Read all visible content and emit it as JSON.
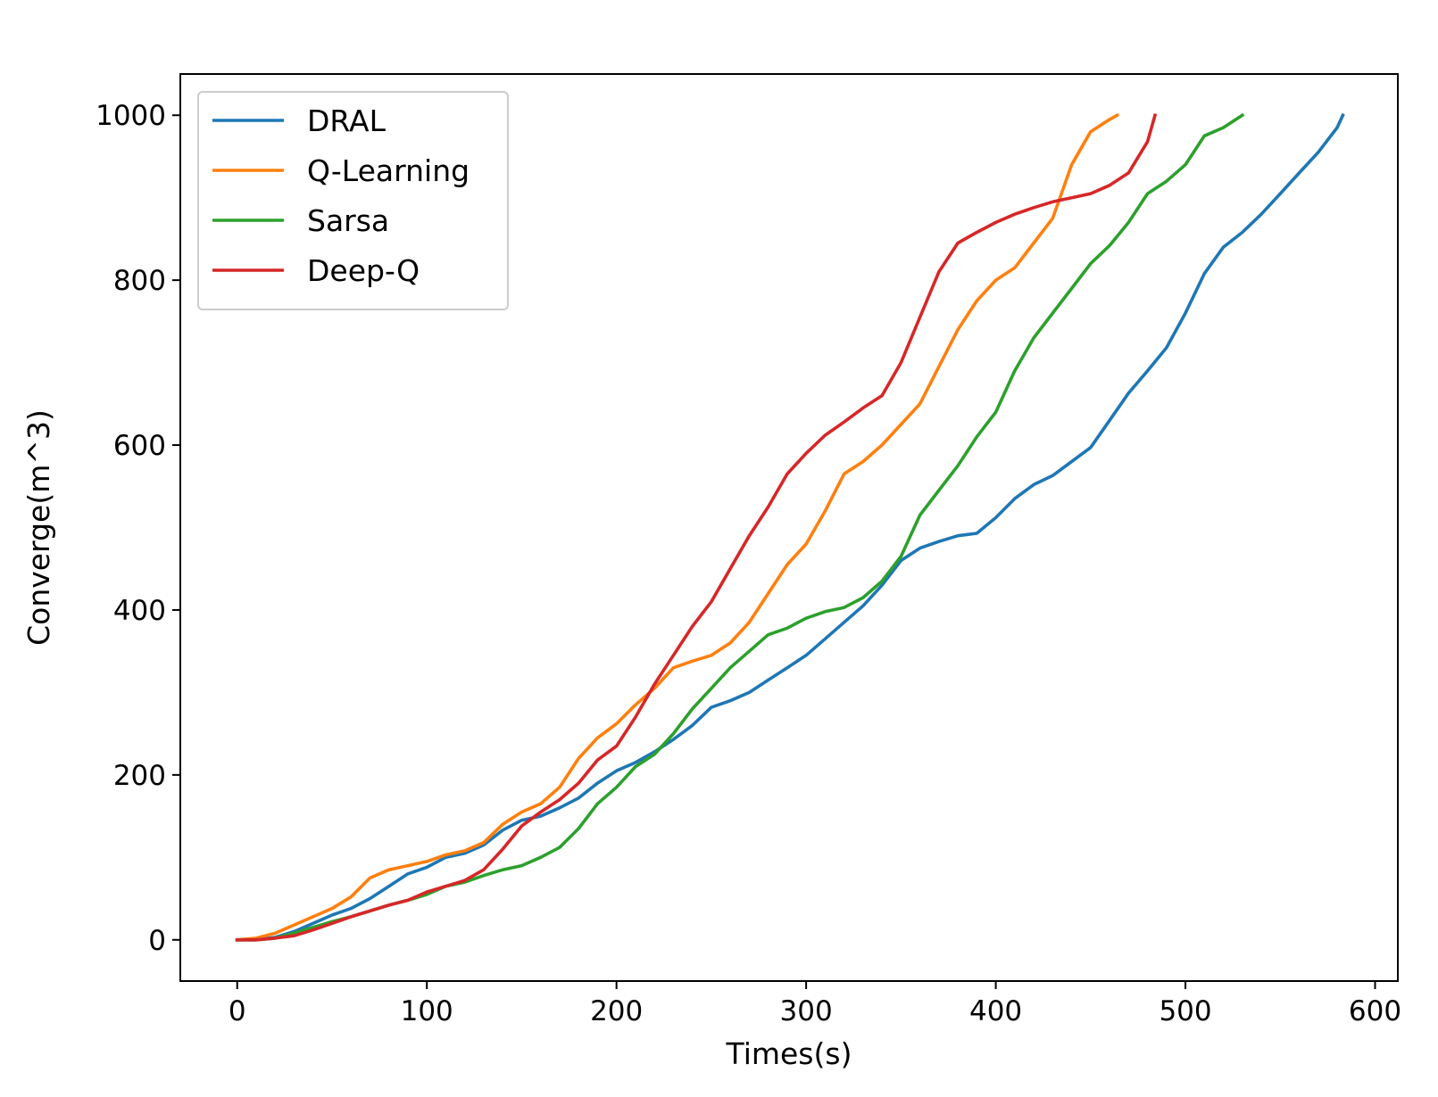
{
  "chart_data": {
    "type": "line",
    "title": "",
    "xlabel": "Times(s)",
    "ylabel": "Converge(m^3)",
    "xlim": [
      -30,
      612
    ],
    "ylim": [
      -50,
      1050
    ],
    "xticks": [
      0,
      100,
      200,
      300,
      400,
      500,
      600
    ],
    "yticks": [
      0,
      200,
      400,
      600,
      800,
      1000
    ],
    "grid": false,
    "legend": "top-left",
    "series": [
      {
        "name": "DRAL",
        "color": "#1f77b4",
        "x": [
          0,
          10,
          20,
          30,
          40,
          50,
          60,
          70,
          80,
          90,
          100,
          110,
          120,
          130,
          140,
          150,
          160,
          170,
          180,
          190,
          200,
          210,
          220,
          230,
          240,
          250,
          260,
          270,
          280,
          290,
          300,
          310,
          320,
          330,
          340,
          350,
          360,
          370,
          380,
          390,
          400,
          410,
          420,
          430,
          440,
          450,
          460,
          470,
          480,
          490,
          500,
          510,
          520,
          530,
          540,
          550,
          560,
          570,
          580,
          583
        ],
        "y": [
          0,
          0,
          3,
          10,
          20,
          30,
          38,
          50,
          65,
          80,
          88,
          100,
          105,
          115,
          133,
          145,
          150,
          160,
          172,
          190,
          205,
          215,
          228,
          243,
          260,
          282,
          290,
          300,
          315,
          330,
          345,
          365,
          385,
          405,
          430,
          460,
          475,
          483,
          490,
          493,
          512,
          535,
          552,
          563,
          580,
          597,
          630,
          663,
          690,
          718,
          760,
          808,
          840,
          858,
          880,
          905,
          930,
          955,
          985,
          1000
        ]
      },
      {
        "name": "Q-Learning",
        "color": "#ff7f0e",
        "x": [
          0,
          10,
          20,
          30,
          40,
          50,
          60,
          70,
          80,
          90,
          100,
          110,
          120,
          130,
          140,
          150,
          160,
          170,
          180,
          190,
          200,
          210,
          220,
          230,
          240,
          250,
          260,
          270,
          280,
          290,
          300,
          310,
          320,
          330,
          340,
          350,
          360,
          370,
          380,
          390,
          400,
          410,
          420,
          430,
          440,
          450,
          460,
          464
        ],
        "y": [
          0,
          2,
          8,
          18,
          28,
          38,
          52,
          75,
          85,
          90,
          95,
          103,
          108,
          118,
          140,
          155,
          165,
          185,
          220,
          245,
          262,
          285,
          305,
          330,
          338,
          345,
          360,
          385,
          420,
          455,
          480,
          520,
          565,
          580,
          600,
          625,
          650,
          695,
          740,
          775,
          800,
          815,
          845,
          875,
          940,
          980,
          995,
          1000
        ]
      },
      {
        "name": "Sarsa",
        "color": "#2ca02c",
        "x": [
          0,
          10,
          20,
          30,
          40,
          50,
          60,
          70,
          80,
          90,
          100,
          110,
          120,
          130,
          140,
          150,
          160,
          170,
          180,
          190,
          200,
          210,
          220,
          230,
          240,
          250,
          260,
          270,
          280,
          290,
          300,
          310,
          320,
          330,
          340,
          350,
          360,
          370,
          380,
          390,
          400,
          410,
          420,
          430,
          440,
          450,
          460,
          470,
          480,
          490,
          500,
          510,
          520,
          530
        ],
        "y": [
          0,
          0,
          2,
          8,
          15,
          22,
          28,
          35,
          42,
          48,
          55,
          65,
          70,
          78,
          85,
          90,
          100,
          112,
          135,
          165,
          185,
          210,
          225,
          250,
          280,
          305,
          330,
          350,
          370,
          378,
          390,
          398,
          403,
          415,
          435,
          465,
          515,
          545,
          575,
          610,
          640,
          690,
          730,
          760,
          790,
          820,
          842,
          870,
          905,
          920,
          940,
          975,
          985,
          1000
        ]
      },
      {
        "name": "Deep-Q",
        "color": "#d62728",
        "x": [
          0,
          10,
          20,
          30,
          40,
          50,
          60,
          70,
          80,
          90,
          100,
          110,
          120,
          130,
          140,
          150,
          160,
          170,
          180,
          190,
          200,
          210,
          220,
          230,
          240,
          250,
          260,
          270,
          280,
          290,
          300,
          310,
          320,
          330,
          340,
          350,
          360,
          370,
          380,
          390,
          400,
          410,
          420,
          430,
          440,
          450,
          460,
          470,
          480,
          484
        ],
        "y": [
          0,
          0,
          2,
          5,
          12,
          20,
          28,
          35,
          42,
          48,
          58,
          65,
          72,
          85,
          110,
          138,
          155,
          170,
          190,
          218,
          235,
          270,
          310,
          345,
          380,
          410,
          450,
          490,
          525,
          565,
          590,
          612,
          628,
          645,
          660,
          700,
          755,
          810,
          845,
          858,
          870,
          880,
          888,
          895,
          900,
          905,
          915,
          930,
          968,
          1000
        ]
      }
    ]
  }
}
